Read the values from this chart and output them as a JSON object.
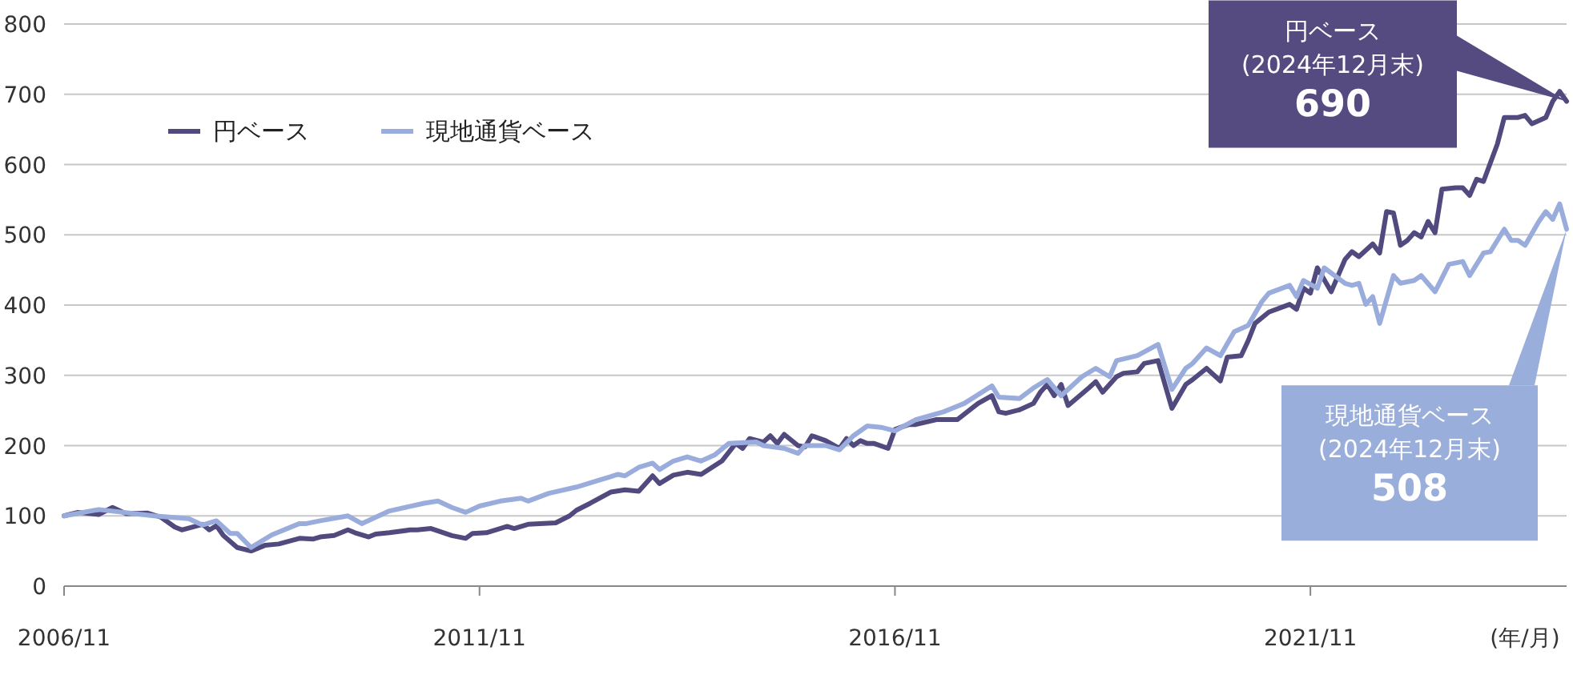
{
  "chart_data": {
    "type": "line",
    "xlabel": "(年/月)",
    "xlim": [
      "2006-11",
      "2024-12"
    ],
    "xticks": [
      {
        "value": "2006-11",
        "label": "2006/11"
      },
      {
        "value": "2011-11",
        "label": "2011/11"
      },
      {
        "value": "2016-11",
        "label": "2016/11"
      },
      {
        "value": "2021-11",
        "label": "2021/11"
      }
    ],
    "ylim": [
      0,
      800
    ],
    "yticks": [
      0,
      100,
      200,
      300,
      400,
      500,
      600,
      700,
      800
    ],
    "grid": "y",
    "legend": "top left",
    "line_style": "solid",
    "marker": "none",
    "series": [
      {
        "name": "円ベース",
        "color": "#514a7e",
        "x": [
          "2006-11",
          "2007-01",
          "2007-04",
          "2007-06",
          "2007-08",
          "2007-11",
          "2008-01",
          "2008-03",
          "2008-04",
          "2008-07",
          "2008-08",
          "2008-09",
          "2008-10",
          "2008-12",
          "2009-02",
          "2009-04",
          "2009-06",
          "2009-09",
          "2009-11",
          "2009-12",
          "2010-02",
          "2010-04",
          "2010-05",
          "2010-07",
          "2010-08",
          "2010-10",
          "2011-01",
          "2011-02",
          "2011-04",
          "2011-07",
          "2011-09",
          "2011-10",
          "2011-12",
          "2012-03",
          "2012-04",
          "2012-06",
          "2012-10",
          "2012-12",
          "2013-01",
          "2013-03",
          "2013-06",
          "2013-08",
          "2013-10",
          "2013-12",
          "2014-01",
          "2014-03",
          "2014-05",
          "2014-07",
          "2014-10",
          "2014-12",
          "2015-01",
          "2015-02",
          "2015-04",
          "2015-05",
          "2015-06",
          "2015-07",
          "2015-09",
          "2015-10",
          "2015-11",
          "2016-01",
          "2016-03",
          "2016-04",
          "2016-05",
          "2016-06",
          "2016-07",
          "2016-08",
          "2016-10",
          "2016-11",
          "2017-01",
          "2017-02",
          "2017-05",
          "2017-08",
          "2017-11",
          "2018-01",
          "2018-02",
          "2018-03",
          "2018-05",
          "2018-07",
          "2018-08",
          "2018-09",
          "2018-10",
          "2018-11",
          "2018-12",
          "2019-03",
          "2019-04",
          "2019-05",
          "2019-07",
          "2019-08",
          "2019-10",
          "2019-11",
          "2020-01",
          "2020-03",
          "2020-05",
          "2020-06",
          "2020-08",
          "2020-10",
          "2020-11",
          "2021-01",
          "2021-02",
          "2021-03",
          "2021-05",
          "2021-08",
          "2021-09",
          "2021-10",
          "2021-11",
          "2021-12",
          "2022-02",
          "2022-04",
          "2022-05",
          "2022-06",
          "2022-08",
          "2022-09",
          "2022-10",
          "2022-11",
          "2022-12",
          "2023-01",
          "2023-02",
          "2023-03",
          "2023-04",
          "2023-05",
          "2023-06",
          "2023-08",
          "2023-09",
          "2023-10",
          "2023-11",
          "2023-12",
          "2024-02",
          "2024-03",
          "2024-05",
          "2024-06",
          "2024-07",
          "2024-09",
          "2024-10",
          "2024-11",
          "2024-12"
        ],
        "values": [
          100,
          105,
          102,
          112,
          103,
          104,
          98,
          84,
          80,
          88,
          80,
          86,
          72,
          55,
          50,
          58,
          60,
          68,
          67,
          70,
          72,
          80,
          76,
          70,
          74,
          76,
          80,
          80,
          82,
          72,
          68,
          75,
          76,
          85,
          82,
          88,
          90,
          100,
          108,
          118,
          134,
          137,
          135,
          157,
          146,
          158,
          162,
          159,
          178,
          203,
          196,
          210,
          205,
          214,
          203,
          216,
          200,
          198,
          214,
          207,
          196,
          210,
          200,
          207,
          203,
          203,
          196,
          223,
          230,
          230,
          237,
          237,
          260,
          271,
          248,
          246,
          251,
          260,
          276,
          287,
          271,
          287,
          257,
          282,
          291,
          276,
          298,
          303,
          305,
          317,
          321,
          253,
          287,
          294,
          310,
          292,
          326,
          328,
          349,
          374,
          390,
          401,
          394,
          424,
          417,
          453,
          419,
          465,
          476,
          469,
          487,
          474,
          533,
          531,
          485,
          492,
          503,
          497,
          519,
          503,
          565,
          567,
          567,
          556,
          579,
          576,
          629,
          667,
          667,
          670,
          658,
          667,
          690,
          704,
          690
        ]
      },
      {
        "name": "現地通貨ベース",
        "color": "#9aacdc",
        "x": [
          "2006-11",
          "2007-04",
          "2007-12",
          "2008-05",
          "2008-07",
          "2008-09",
          "2008-11",
          "2008-12",
          "2009-02",
          "2009-05",
          "2009-09",
          "2009-10",
          "2009-12",
          "2010-04",
          "2010-06",
          "2010-10",
          "2011-03",
          "2011-05",
          "2011-07",
          "2011-09",
          "2011-11",
          "2012-02",
          "2012-05",
          "2012-06",
          "2012-09",
          "2013-01",
          "2013-04",
          "2013-07",
          "2013-08",
          "2013-10",
          "2013-12",
          "2014-01",
          "2014-03",
          "2014-05",
          "2014-07",
          "2014-09",
          "2014-11",
          "2015-03",
          "2015-04",
          "2015-07",
          "2015-09",
          "2015-10",
          "2016-01",
          "2016-03",
          "2016-05",
          "2016-07",
          "2016-09",
          "2016-11",
          "2017-02",
          "2017-06",
          "2017-09",
          "2018-01",
          "2018-02",
          "2018-05",
          "2018-07",
          "2018-09",
          "2018-11",
          "2019-02",
          "2019-04",
          "2019-06",
          "2019-07",
          "2019-10",
          "2020-01",
          "2020-03",
          "2020-05",
          "2020-06",
          "2020-08",
          "2020-10",
          "2020-12",
          "2021-02",
          "2021-04",
          "2021-05",
          "2021-08",
          "2021-09",
          "2021-10",
          "2021-12",
          "2022-01",
          "2022-04",
          "2022-05",
          "2022-06",
          "2022-07",
          "2022-08",
          "2022-09",
          "2022-11",
          "2022-12",
          "2023-02",
          "2023-03",
          "2023-05",
          "2023-07",
          "2023-09",
          "2023-10",
          "2023-12",
          "2024-01",
          "2024-03",
          "2024-04",
          "2024-05",
          "2024-06",
          "2024-08",
          "2024-09",
          "2024-10",
          "2024-11",
          "2024-12"
        ],
        "values": [
          100,
          109,
          100,
          96,
          87,
          93,
          75,
          75,
          55,
          73,
          89,
          89,
          93,
          100,
          89,
          107,
          118,
          121,
          112,
          105,
          114,
          121,
          125,
          121,
          132,
          141,
          150,
          159,
          157,
          169,
          175,
          166,
          178,
          184,
          178,
          187,
          203,
          205,
          200,
          196,
          189,
          200,
          200,
          194,
          214,
          228,
          226,
          221,
          237,
          248,
          260,
          285,
          269,
          267,
          282,
          294,
          271,
          298,
          310,
          298,
          321,
          328,
          344,
          280,
          310,
          317,
          339,
          328,
          362,
          371,
          405,
          417,
          428,
          412,
          435,
          424,
          453,
          431,
          428,
          431,
          401,
          412,
          374,
          442,
          431,
          435,
          442,
          419,
          458,
          462,
          442,
          474,
          476,
          508,
          492,
          492,
          485,
          519,
          533,
          522,
          544,
          508
        ]
      }
    ],
    "annotations": [
      "円ベース\n(2024年12月末)\n690",
      {
        "text": "現地通貨ベース\n(2024年12月末)\n508",
        "x": "2024-12",
        "y": 508
      }
    ]
  }
}
